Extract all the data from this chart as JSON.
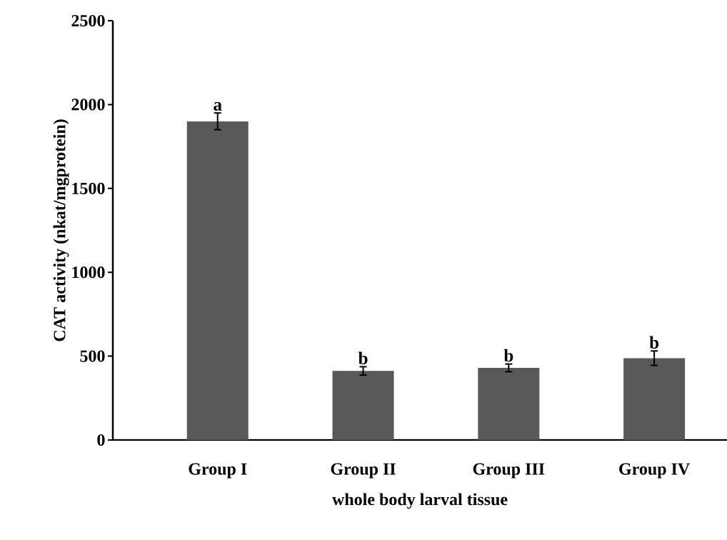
{
  "chart_data": {
    "type": "bar",
    "xlabel": "whole body larval tissue",
    "ylabel": "CAT  activity (nkat/mgprotein)",
    "categories": [
      "Group I",
      "Group II",
      "Group III",
      "Group IV"
    ],
    "values": [
      1900,
      412,
      430,
      488
    ],
    "errors": [
      50,
      25,
      23,
      43
    ],
    "color": "#595959",
    "ylim": [
      0,
      2500
    ],
    "yticks": [
      0,
      500,
      1000,
      1500,
      2000,
      2500
    ],
    "grid": false,
    "annotations": [
      {
        "text": "a",
        "x": "Group I",
        "y": 1950
      },
      {
        "text": "b",
        "x": "Group II",
        "y": 437
      },
      {
        "text": "b",
        "x": "Group III",
        "y": 453
      },
      {
        "text": "b",
        "x": "Group IV",
        "y": 531
      }
    ]
  }
}
